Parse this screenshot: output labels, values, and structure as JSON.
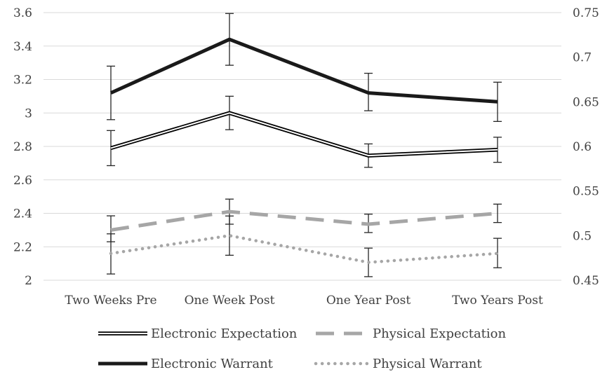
{
  "chart_data": {
    "type": "line",
    "title": "",
    "xlabel": "",
    "ylabel": "",
    "categories": [
      "Two Weeks Pre",
      "One Week Post",
      "One Year Post",
      "Two Years Post"
    ],
    "y_left": {
      "min": 2,
      "max": 3.6,
      "ticks": [
        "2",
        "2.2",
        "2.4",
        "2.6",
        "2.8",
        "3",
        "3.2",
        "3.4",
        "3.6"
      ]
    },
    "y_right": {
      "min": 0.45,
      "max": 0.75,
      "ticks": [
        "0.45",
        "0.5",
        "0.55",
        "0.6",
        "0.65",
        "0.7",
        "0.75"
      ]
    },
    "grid": "horizontal",
    "legend_position": "bottom",
    "series": [
      {
        "name": "Electronic Expectation",
        "axis": "left",
        "style": "double",
        "color": "#000000",
        "values": [
          2.79,
          3.0,
          2.745,
          2.78
        ],
        "err_low": [
          2.685,
          2.9,
          2.675,
          2.705
        ],
        "err_high": [
          2.895,
          3.1,
          2.815,
          2.855
        ]
      },
      {
        "name": "Physical Expectation",
        "axis": "left",
        "style": "dash",
        "color": "#a6a6a6",
        "values": [
          2.3,
          2.41,
          2.335,
          2.4
        ],
        "err_low": [
          2.23,
          2.335,
          2.285,
          2.345
        ],
        "err_high": [
          2.385,
          2.485,
          2.395,
          2.455
        ]
      },
      {
        "name": "Electronic Warrant",
        "axis": "right",
        "style": "solid",
        "color": "#1a1a1a",
        "values": [
          0.66,
          0.72,
          0.66,
          0.65
        ],
        "err_low": [
          0.63,
          0.691,
          0.64,
          0.628
        ],
        "err_high": [
          0.69,
          0.749,
          0.682,
          0.672
        ]
      },
      {
        "name": "Physical Warrant",
        "axis": "right",
        "style": "dot",
        "color": "#a6a6a6",
        "values": [
          0.48,
          0.5,
          0.47,
          0.48
        ],
        "err_low": [
          0.457,
          0.478,
          0.454,
          0.464
        ],
        "err_high": [
          0.502,
          0.522,
          0.486,
          0.497
        ]
      }
    ]
  }
}
